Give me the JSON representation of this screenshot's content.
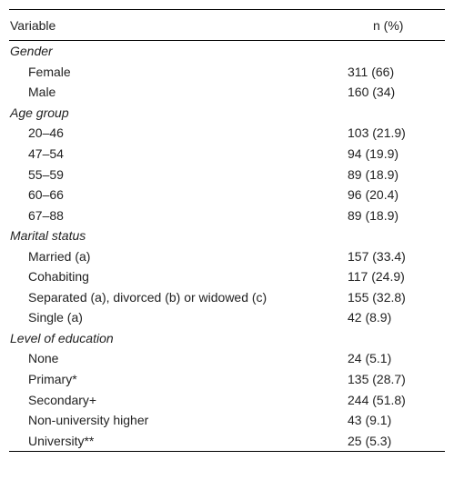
{
  "table": {
    "header": [
      "Variable",
      "n (%)"
    ],
    "groups": [
      {
        "title": "Gender",
        "rows": [
          [
            "Female",
            "311 (66)"
          ],
          [
            "Male",
            "160 (34)"
          ]
        ]
      },
      {
        "title": "Age group",
        "rows": [
          [
            "20–46",
            "103 (21.9)"
          ],
          [
            "47–54",
            "94 (19.9)"
          ],
          [
            "55–59",
            "89 (18.9)"
          ],
          [
            "60–66",
            "96 (20.4)"
          ],
          [
            "67–88",
            "89 (18.9)"
          ]
        ]
      },
      {
        "title": "Marital status",
        "rows": [
          [
            "Married (a)",
            "157 (33.4)"
          ],
          [
            "Cohabiting",
            "117 (24.9)"
          ],
          [
            "Separated (a), divorced (b) or widowed (c)",
            "155 (32.8)"
          ],
          [
            "Single (a)",
            "42 (8.9)"
          ]
        ]
      },
      {
        "title": "Level of education",
        "rows": [
          [
            "None",
            "24 (5.1)"
          ],
          [
            "Primary*",
            "135 (28.7)"
          ],
          [
            "Secondary+",
            "244 (51.8)"
          ],
          [
            "Non-university higher",
            "43 (9.1)"
          ],
          [
            "University**",
            "25 (5.3)"
          ]
        ]
      }
    ]
  }
}
